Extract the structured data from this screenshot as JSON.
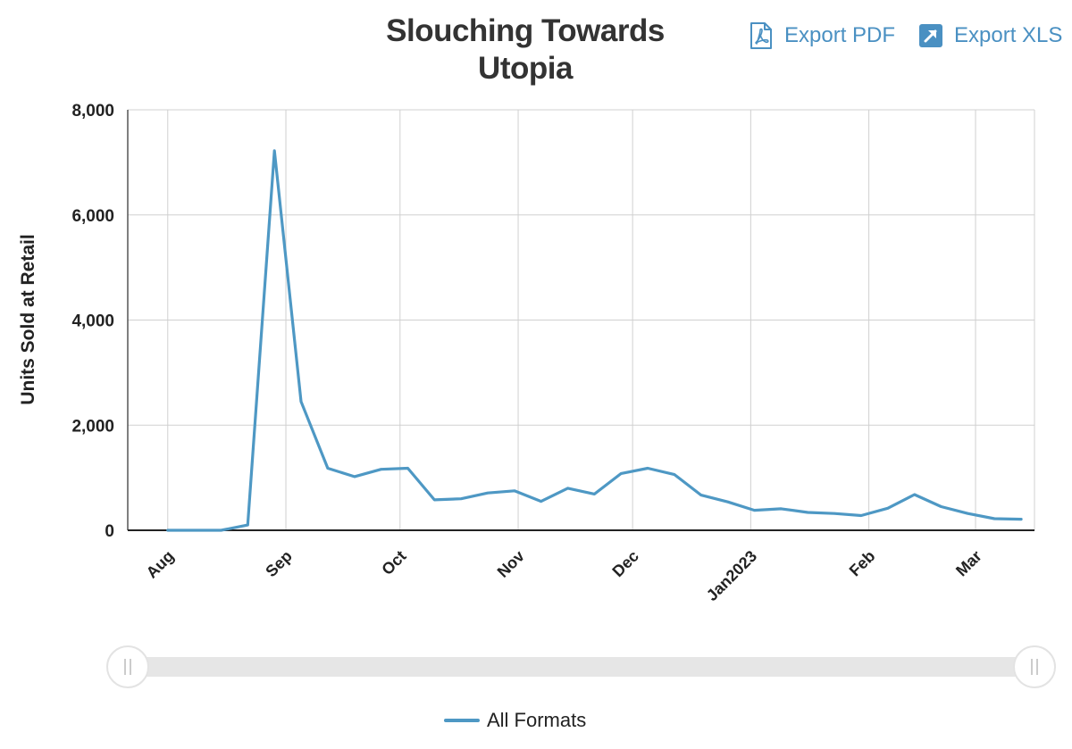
{
  "title": "Slouching Towards Utopia",
  "title_lines": [
    "Slouching Towards",
    "Utopia"
  ],
  "exports": {
    "pdf_label": "Export PDF",
    "xls_label": "Export XLS"
  },
  "colors": {
    "series": "#4e98c4",
    "link": "#4a90c2",
    "grid": "#d0d0d0"
  },
  "legend": {
    "label": "All Formats"
  },
  "chart_data": {
    "type": "line",
    "title": "Slouching Towards Utopia",
    "xlabel": "",
    "ylabel": "Units Sold at Retail",
    "ylim": [
      0,
      8000
    ],
    "yticks": [
      0,
      2000,
      4000,
      6000,
      8000
    ],
    "ytick_labels": [
      "0",
      "2,000",
      "4,000",
      "6,000",
      "8,000"
    ],
    "x_unit": "weeks from Aug 1, 2022",
    "xlim": [
      -1.5,
      32.5
    ],
    "xticks": [
      {
        "label": "Aug",
        "x": 0
      },
      {
        "label": "Sep",
        "x": 4.43
      },
      {
        "label": "Oct",
        "x": 8.71
      },
      {
        "label": "Nov",
        "x": 13.14
      },
      {
        "label": "Dec",
        "x": 17.43
      },
      {
        "label": "Jan2023",
        "x": 21.86
      },
      {
        "label": "Feb",
        "x": 26.29
      },
      {
        "label": "Mar",
        "x": 30.29
      }
    ],
    "grid": true,
    "series": [
      {
        "name": "All Formats",
        "x": [
          0,
          1,
          2,
          3,
          4,
          5,
          6,
          7,
          8,
          9,
          10,
          11,
          12,
          13,
          14,
          15,
          16,
          17,
          18,
          19,
          20,
          21,
          22,
          23,
          24,
          25,
          26,
          27,
          28,
          29,
          30,
          31,
          32
        ],
        "values": [
          0,
          0,
          0,
          100,
          7220,
          2450,
          1180,
          1020,
          1160,
          1180,
          580,
          600,
          710,
          750,
          550,
          800,
          690,
          1080,
          1180,
          1060,
          670,
          540,
          380,
          410,
          340,
          320,
          280,
          420,
          680,
          450,
          320,
          220,
          210
        ]
      }
    ],
    "legend_position": "bottom-center"
  }
}
